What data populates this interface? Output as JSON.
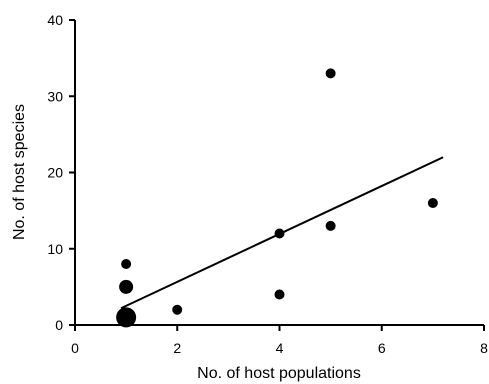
{
  "chart_data": {
    "type": "scatter",
    "xlabel": "No. of host populations",
    "ylabel": "No. of host species",
    "xlim": [
      0,
      8
    ],
    "ylim": [
      0,
      40
    ],
    "x_ticks": [
      0,
      2,
      4,
      6,
      8
    ],
    "y_ticks": [
      0,
      10,
      20,
      30,
      40
    ],
    "grid": false,
    "points": [
      {
        "x": 1,
        "y": 1,
        "size": "large"
      },
      {
        "x": 1,
        "y": 5,
        "size": "medium"
      },
      {
        "x": 1,
        "y": 8,
        "size": "small"
      },
      {
        "x": 2,
        "y": 2,
        "size": "small"
      },
      {
        "x": 4,
        "y": 4,
        "size": "small"
      },
      {
        "x": 4,
        "y": 12,
        "size": "small"
      },
      {
        "x": 5,
        "y": 13,
        "size": "small"
      },
      {
        "x": 5,
        "y": 33,
        "size": "small"
      },
      {
        "x": 7,
        "y": 16,
        "size": "small"
      }
    ],
    "trend_line": {
      "x": [
        0.9,
        7.2
      ],
      "y": [
        2.2,
        22
      ]
    }
  }
}
